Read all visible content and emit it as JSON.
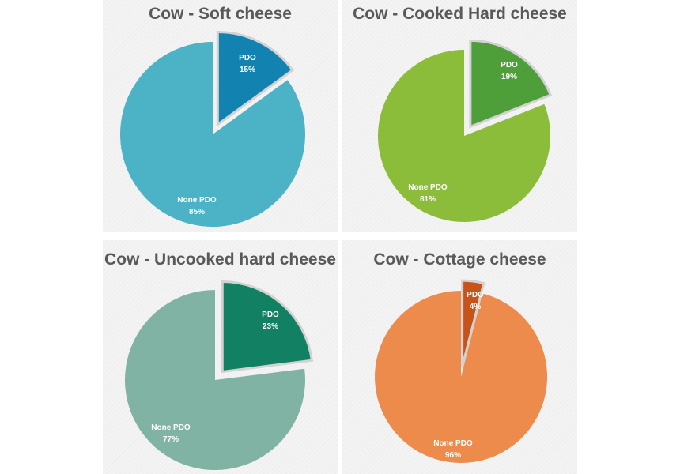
{
  "chart_data": [
    {
      "type": "pie",
      "title": "Cow - Soft cheese",
      "slices": [
        {
          "label": "PDO",
          "value": 15,
          "value_label": "15%",
          "color": "#1283b0",
          "exploded": true
        },
        {
          "label": "None PDO",
          "value": 85,
          "value_label": "85%",
          "color": "#4bb3c5",
          "exploded": false
        }
      ]
    },
    {
      "type": "pie",
      "title": "Cow - Cooked Hard cheese",
      "slices": [
        {
          "label": "PDO",
          "value": 19,
          "value_label": "19%",
          "color": "#4e9f39",
          "exploded": true
        },
        {
          "label": "None PDO",
          "value": 81,
          "value_label": "81%",
          "color": "#8cbd3a",
          "exploded": false
        }
      ]
    },
    {
      "type": "pie",
      "title": "Cow - Uncooked  hard cheese",
      "slices": [
        {
          "label": "PDO",
          "value": 23,
          "value_label": "23%",
          "color": "#128062",
          "exploded": true
        },
        {
          "label": "None PDO",
          "value": 77,
          "value_label": "77%",
          "color": "#80b3a3",
          "exploded": false
        }
      ]
    },
    {
      "type": "pie",
      "title": "Cow - Cottage cheese",
      "slices": [
        {
          "label": "PDO",
          "value": 4,
          "value_label": "4%",
          "color": "#c5531a",
          "exploded": true
        },
        {
          "label": "None PDO",
          "value": 96,
          "value_label": "96%",
          "color": "#ed8b4c",
          "exploded": false
        }
      ]
    }
  ]
}
